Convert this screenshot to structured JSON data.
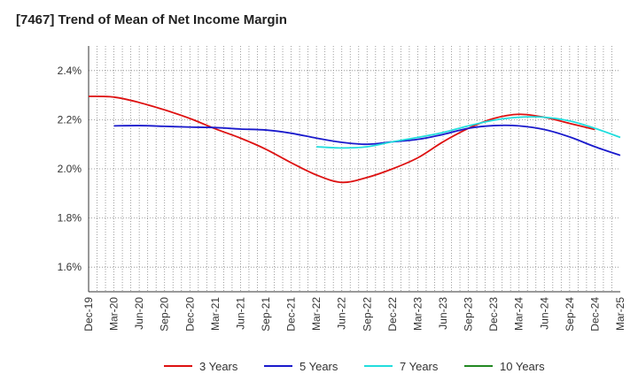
{
  "chart_data": {
    "type": "line",
    "title": "[7467]  Trend of Mean of Net Income Margin",
    "xlabel": "",
    "ylabel": "",
    "ylim": [
      1.5,
      2.5
    ],
    "yticks": [
      "1.6%",
      "1.8%",
      "2.0%",
      "2.2%",
      "2.4%"
    ],
    "ytick_values": [
      1.6,
      1.8,
      2.0,
      2.2,
      2.4
    ],
    "x_tick_labels": [
      "Dec-19",
      "Mar-20",
      "Jun-20",
      "Sep-20",
      "Dec-20",
      "Mar-21",
      "Jun-21",
      "Sep-21",
      "Dec-21",
      "Mar-22",
      "Jun-22",
      "Sep-22",
      "Dec-22",
      "Mar-23",
      "Jun-23",
      "Sep-23",
      "Dec-23",
      "Mar-24",
      "Jun-24",
      "Sep-24",
      "Dec-24",
      "Mar-25"
    ],
    "grid": true,
    "legend_position": "bottom",
    "series": [
      {
        "name": "3 Years",
        "color": "#dd1111",
        "start_index": 0,
        "values": [
          2.295,
          2.292,
          2.27,
          2.24,
          2.205,
          2.163,
          2.125,
          2.08,
          2.025,
          1.975,
          1.945,
          1.965,
          2.0,
          2.045,
          2.11,
          2.165,
          2.205,
          2.222,
          2.21,
          2.185,
          2.16
        ]
      },
      {
        "name": "5 Years",
        "color": "#1a1acc",
        "start_index": 1,
        "values": [
          2.175,
          2.176,
          2.173,
          2.17,
          2.168,
          2.162,
          2.158,
          2.145,
          2.125,
          2.108,
          2.1,
          2.11,
          2.12,
          2.14,
          2.165,
          2.176,
          2.175,
          2.16,
          2.13,
          2.09,
          2.055
        ]
      },
      {
        "name": "7 Years",
        "color": "#22dddd",
        "start_index": 9,
        "values": [
          2.09,
          2.085,
          2.09,
          2.11,
          2.128,
          2.148,
          2.175,
          2.198,
          2.21,
          2.21,
          2.195,
          2.165,
          2.128
        ]
      },
      {
        "name": "10 Years",
        "color": "#228822",
        "start_index": 0,
        "values": []
      }
    ]
  }
}
